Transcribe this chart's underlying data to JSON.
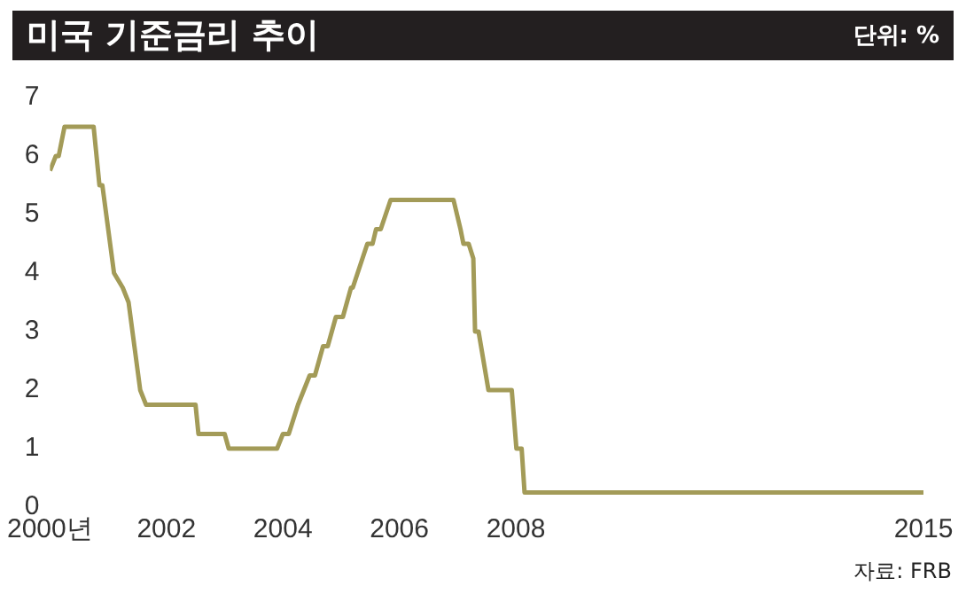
{
  "chart_data": {
    "type": "line",
    "title": "미국 기준금리 추이",
    "subtitle": "단위: %",
    "annotations": [
      "자료: FRB"
    ],
    "x": [
      2000.0,
      2000.1,
      2000.15,
      2000.25,
      2000.75,
      2000.85,
      2000.9,
      2001.1,
      2001.25,
      2001.35,
      2001.55,
      2001.65,
      2002.5,
      2002.55,
      2003.0,
      2003.07,
      2003.9,
      2004.0,
      2004.1,
      2004.26,
      2004.46,
      2004.55,
      2004.69,
      2004.77,
      2004.91,
      2005.03,
      2005.17,
      2005.2,
      2005.45,
      2005.54,
      2005.6,
      2005.68,
      2005.85,
      2006.93,
      2007.05,
      2007.1,
      2007.19,
      2007.27,
      2007.3,
      2007.36,
      2007.53,
      2007.93,
      2008.01,
      2008.1,
      2008.15,
      2015.0
    ],
    "series": [
      {
        "color": "#a39b58",
        "values": [
          5.75,
          6.0,
          6.0,
          6.5,
          6.5,
          5.5,
          5.5,
          4.0,
          3.75,
          3.5,
          2.0,
          1.75,
          1.75,
          1.25,
          1.25,
          1.0,
          1.0,
          1.25,
          1.25,
          1.75,
          2.25,
          2.25,
          2.75,
          2.75,
          3.25,
          3.25,
          3.75,
          3.75,
          4.5,
          4.5,
          4.75,
          4.75,
          5.25,
          5.25,
          4.75,
          4.5,
          4.5,
          4.25,
          3.0,
          3.0,
          2.0,
          2.0,
          1.0,
          1.0,
          0.25,
          0.25
        ]
      }
    ],
    "xlim": [
      2000,
      2015
    ],
    "xticks": [
      {
        "value": 2000,
        "label": "2000년"
      },
      2002,
      2004,
      2006,
      2008,
      2015
    ],
    "ylim": [
      0,
      7
    ],
    "yticks": [
      0,
      1,
      2,
      3,
      4,
      5,
      6,
      7
    ],
    "grid": false,
    "legend": false,
    "marker": "none",
    "line_style": "solid"
  }
}
